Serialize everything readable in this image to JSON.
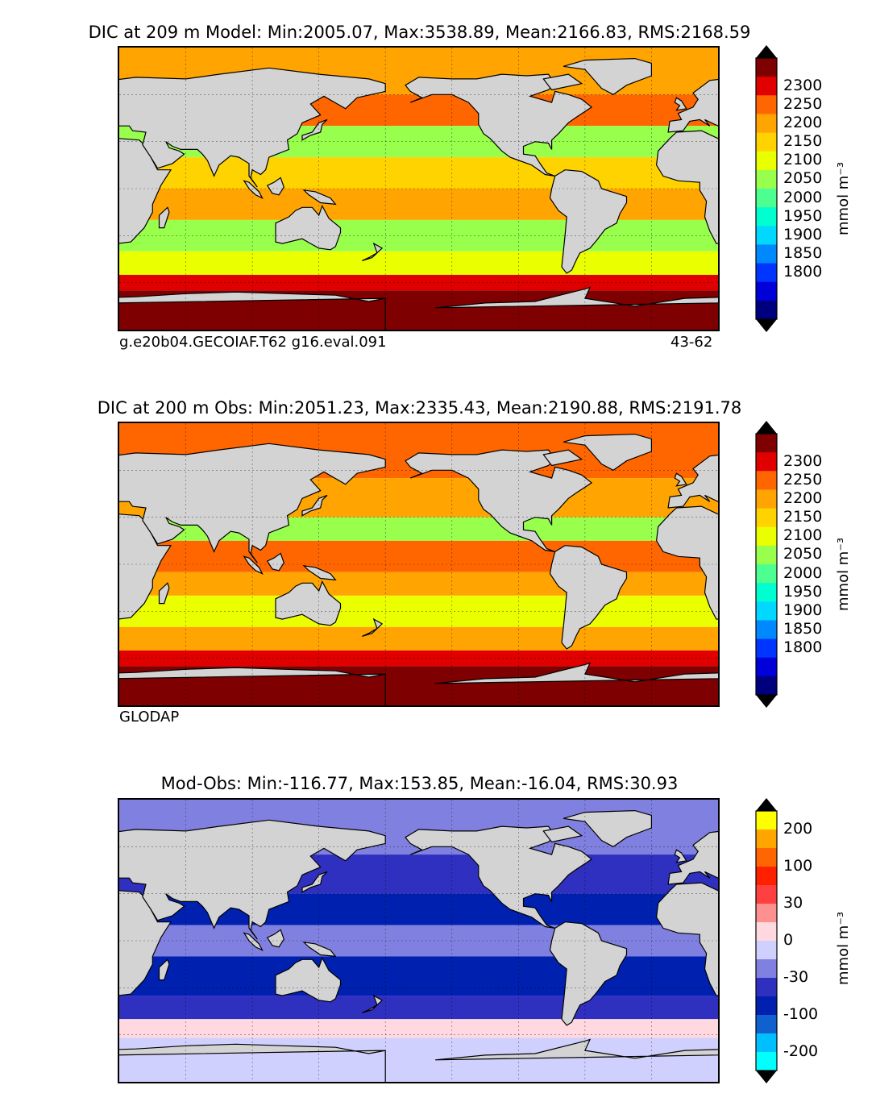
{
  "colors": {
    "land": "#d3d3d3",
    "frame": "#000000",
    "abs_scale": [
      "#00007f",
      "#0000d8",
      "#0035ff",
      "#0088ff",
      "#00d8ff",
      "#00ffd0",
      "#4dff90",
      "#98ff4d",
      "#eaff00",
      "#ffd300",
      "#ffa400",
      "#ff6600",
      "#e00000",
      "#7f0000"
    ],
    "diff_scale": [
      "#00ffff",
      "#00bfff",
      "#1060d0",
      "#0020b0",
      "#3030c0",
      "#8080e0",
      "#d0d0ff",
      "#ffd8e0",
      "#ff9090",
      "#ff4040",
      "#ff2000",
      "#ff6600",
      "#ffa500",
      "#ffff00"
    ]
  },
  "units": "mmol m⁻³",
  "chart_data": [
    {
      "type": "heatmap",
      "title": "DIC at 209 m Model: Min:2005.07, Max:3538.89, Mean:2166.83, RMS:2168.59",
      "source_left": "g.e20b04.GECOIAF.T62 g16.eval.091",
      "source_right": "43-62",
      "colorbar_ticks": [
        "2300",
        "2250",
        "2200",
        "2150",
        "2100",
        "2050",
        "2000",
        "1950",
        "1900",
        "1850",
        "1800"
      ],
      "levels": [
        1775,
        1800,
        1850,
        1900,
        1950,
        2000,
        2050,
        2100,
        2150,
        2200,
        2250,
        2300,
        2325
      ],
      "stats": {
        "min": 2005.07,
        "max": 3538.89,
        "mean": 2166.83,
        "rms": 2168.59
      },
      "zones": [
        {
          "lat_range": [
            60,
            90
          ],
          "level": 10
        },
        {
          "lat_range": [
            40,
            60
          ],
          "level": 11
        },
        {
          "lat_range": [
            20,
            40
          ],
          "level": 7
        },
        {
          "lat_range": [
            0,
            20
          ],
          "level": 9
        },
        {
          "lat_range": [
            -20,
            0
          ],
          "level": 10
        },
        {
          "lat_range": [
            -40,
            -20
          ],
          "level": 7
        },
        {
          "lat_range": [
            -55,
            -40
          ],
          "level": 8
        },
        {
          "lat_range": [
            -65,
            -55
          ],
          "level": 12
        },
        {
          "lat_range": [
            -90,
            -65
          ],
          "level": 13
        }
      ]
    },
    {
      "type": "heatmap",
      "title": "DIC at 200 m Obs: Min:2051.23, Max:2335.43, Mean:2190.88, RMS:2191.78",
      "source_left": "GLODAP",
      "source_right": "",
      "colorbar_ticks": [
        "2300",
        "2250",
        "2200",
        "2150",
        "2100",
        "2050",
        "2000",
        "1950",
        "1900",
        "1850",
        "1800"
      ],
      "levels": [
        1775,
        1800,
        1850,
        1900,
        1950,
        2000,
        2050,
        2100,
        2150,
        2200,
        2250,
        2300,
        2325
      ],
      "stats": {
        "min": 2051.23,
        "max": 2335.43,
        "mean": 2190.88,
        "rms": 2191.78
      },
      "zones": [
        {
          "lat_range": [
            55,
            90
          ],
          "level": 11
        },
        {
          "lat_range": [
            30,
            55
          ],
          "level": 10
        },
        {
          "lat_range": [
            15,
            30
          ],
          "level": 7
        },
        {
          "lat_range": [
            -5,
            15
          ],
          "level": 11
        },
        {
          "lat_range": [
            -20,
            -5
          ],
          "level": 10
        },
        {
          "lat_range": [
            -40,
            -20
          ],
          "level": 8
        },
        {
          "lat_range": [
            -55,
            -40
          ],
          "level": 10
        },
        {
          "lat_range": [
            -65,
            -55
          ],
          "level": 12
        },
        {
          "lat_range": [
            -90,
            -65
          ],
          "level": 13
        }
      ]
    },
    {
      "type": "heatmap",
      "title": "Mod-Obs: Min:-116.77, Max:153.85, Mean:-16.04, RMS:30.93",
      "source_left": "",
      "source_right": "",
      "colorbar_ticks": [
        "200",
        "100",
        "30",
        "0",
        "-30",
        "-100",
        "-200"
      ],
      "levels": [
        -300,
        -200,
        -150,
        -100,
        -50,
        -30,
        -10,
        0,
        10,
        30,
        50,
        100,
        150,
        200,
        300
      ],
      "stats": {
        "min": -116.77,
        "max": 153.85,
        "mean": -16.04,
        "rms": 30.93
      },
      "zones": [
        {
          "lat_range": [
            55,
            90
          ],
          "level": 5
        },
        {
          "lat_range": [
            30,
            55
          ],
          "level": 4
        },
        {
          "lat_range": [
            10,
            30
          ],
          "level": 3
        },
        {
          "lat_range": [
            -10,
            10
          ],
          "level": 5
        },
        {
          "lat_range": [
            -35,
            -10
          ],
          "level": 3
        },
        {
          "lat_range": [
            -50,
            -35
          ],
          "level": 4
        },
        {
          "lat_range": [
            -62,
            -50
          ],
          "level": 7
        },
        {
          "lat_range": [
            -90,
            -62
          ],
          "level": 6
        }
      ]
    }
  ]
}
